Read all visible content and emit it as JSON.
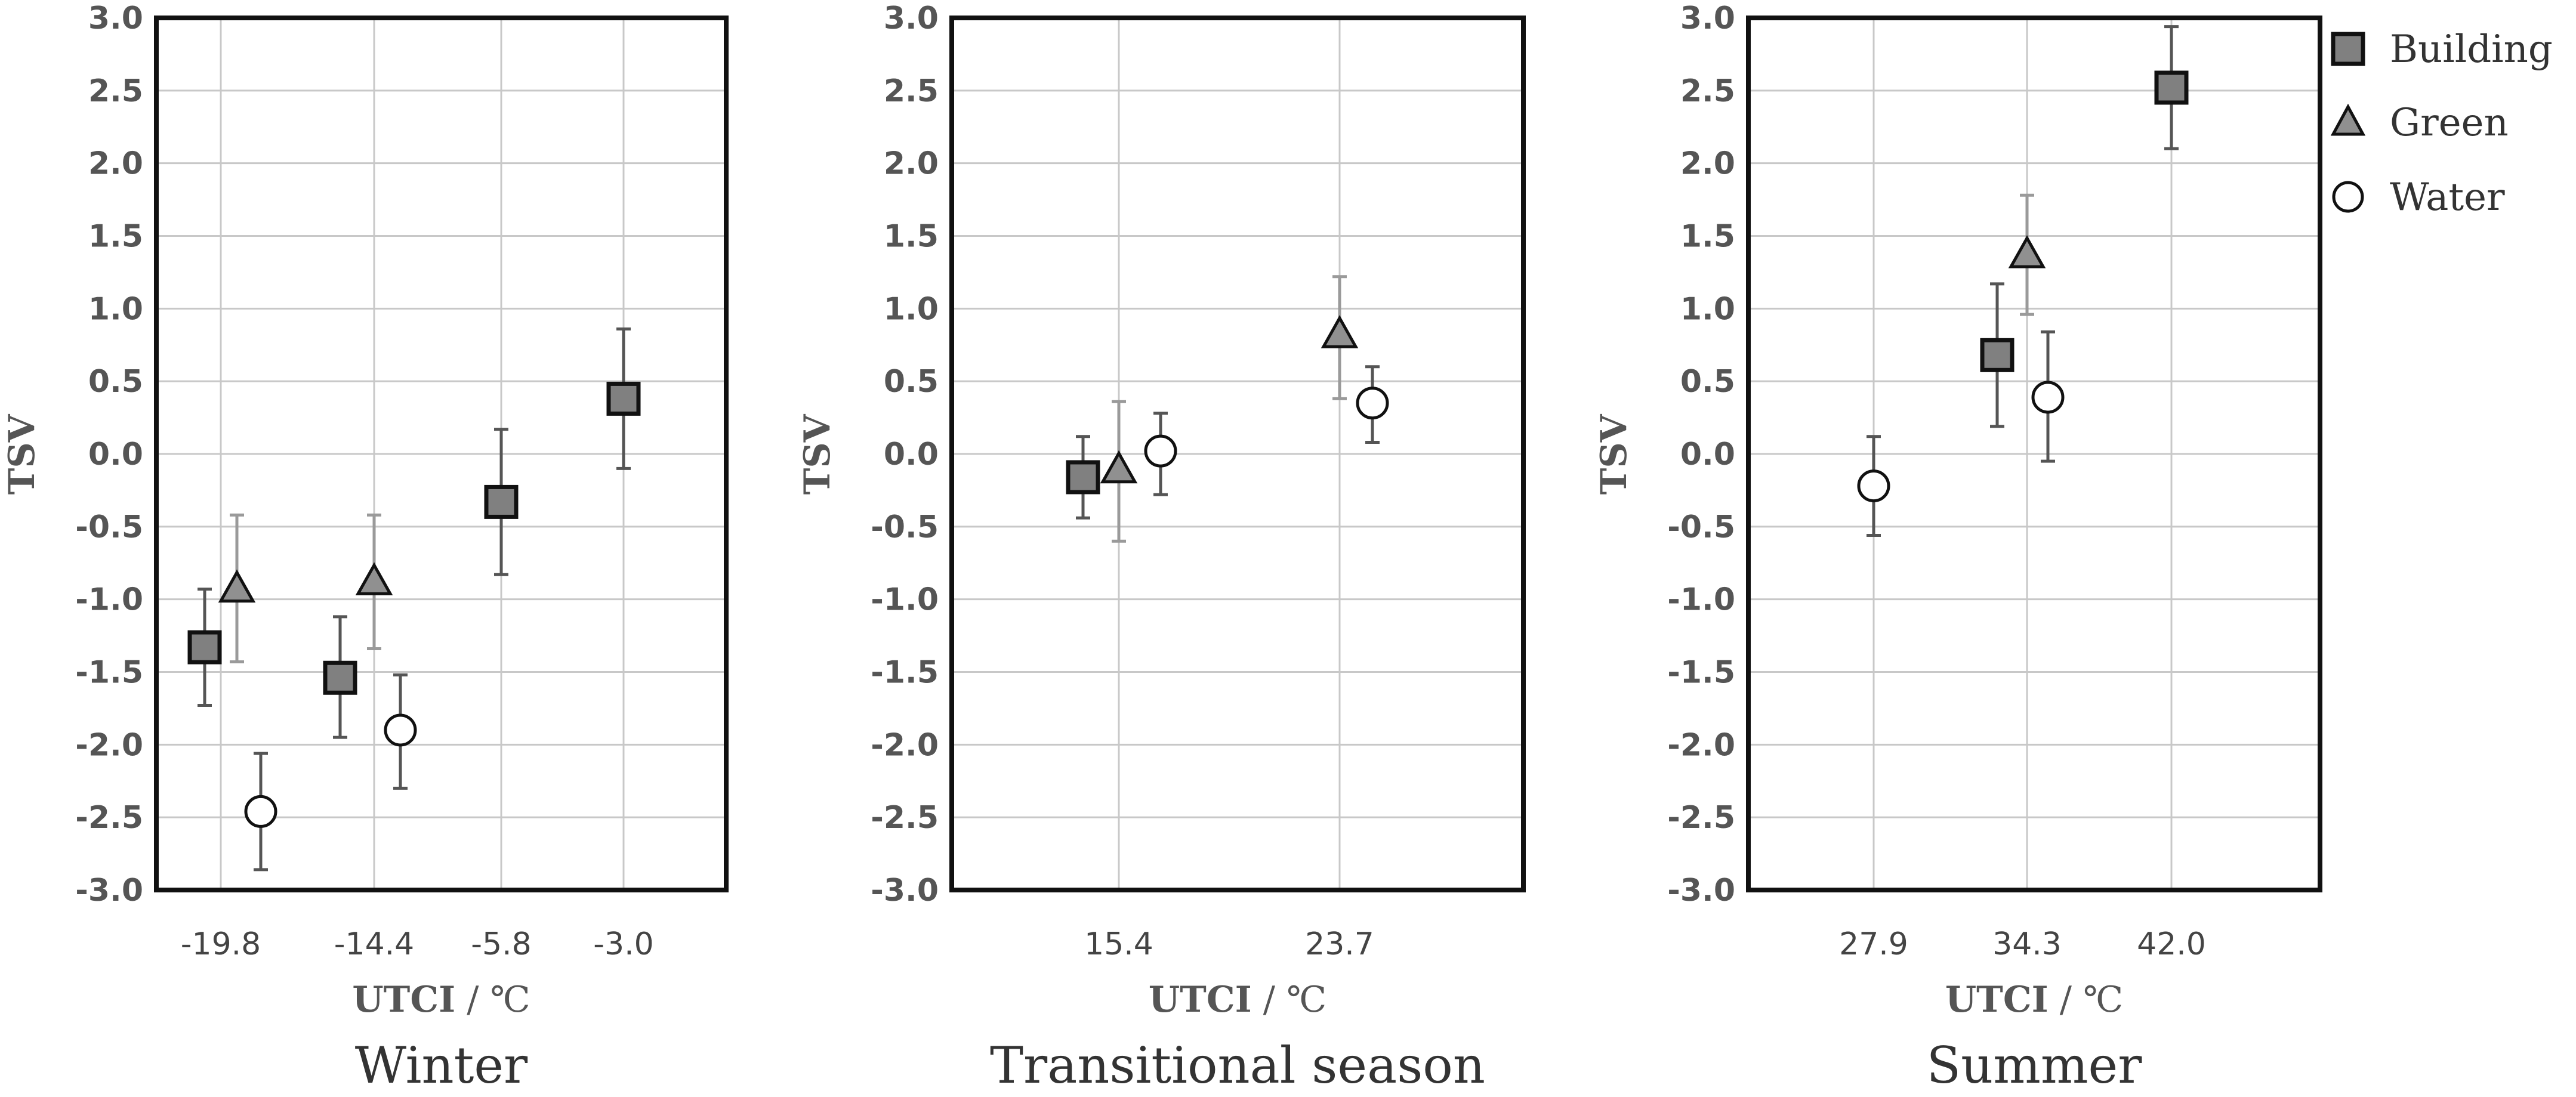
{
  "chart_data": [
    {
      "type": "scatter",
      "title": "",
      "caption": "Winter",
      "xlabel": "UTCI",
      "xlabel_unit": " / ℃",
      "ylabel": "TSV",
      "ylim": [
        -3.0,
        3.0
      ],
      "yticks": [
        "3.0",
        "2.5",
        "2.0",
        "1.5",
        "1.0",
        "0.5",
        "0.0",
        "-0.5",
        "-1.0",
        "-1.5",
        "-2.0",
        "-2.5",
        "-3.0"
      ],
      "x_categories": [
        "-19.8",
        "-14.4",
        "-5.8",
        "-3.0"
      ],
      "grid": true,
      "series": [
        {
          "name": "Building",
          "marker": "square",
          "points": [
            {
              "x": "-19.8",
              "y": -1.33,
              "err_low": -1.73,
              "err_high": -0.93
            },
            {
              "x": "-14.4",
              "y": -1.54,
              "err_low": -1.95,
              "err_high": -1.12
            },
            {
              "x": "-5.8",
              "y": -0.33,
              "err_low": -0.83,
              "err_high": 0.17
            },
            {
              "x": "-3.0",
              "y": 0.38,
              "err_low": -0.1,
              "err_high": 0.86
            }
          ]
        },
        {
          "name": "Green",
          "marker": "triangle",
          "points": [
            {
              "x": "-19.8",
              "y": -0.93,
              "err_low": -1.43,
              "err_high": -0.42
            },
            {
              "x": "-14.4",
              "y": -0.88,
              "err_low": -1.34,
              "err_high": -0.42
            }
          ]
        },
        {
          "name": "Water",
          "marker": "circle",
          "points": [
            {
              "x": "-19.8",
              "y": -2.46,
              "err_low": -2.86,
              "err_high": -2.06
            },
            {
              "x": "-14.4",
              "y": -1.9,
              "err_low": -2.3,
              "err_high": -1.52
            }
          ]
        }
      ]
    },
    {
      "type": "scatter",
      "title": "",
      "caption": "Transitional season",
      "xlabel": "UTCI",
      "xlabel_unit": " / ℃",
      "ylabel": "TSV",
      "ylim": [
        -3.0,
        3.0
      ],
      "yticks": [
        "3.0",
        "2.5",
        "2.0",
        "1.5",
        "1.0",
        "0.5",
        "0.0",
        "-0.5",
        "-1.0",
        "-1.5",
        "-2.0",
        "-2.5",
        "-3.0"
      ],
      "x_categories": [
        "15.4",
        "23.7"
      ],
      "grid": true,
      "series": [
        {
          "name": "Building",
          "marker": "square",
          "points": [
            {
              "x": "15.4",
              "y": -0.16,
              "err_low": -0.44,
              "err_high": 0.12
            }
          ]
        },
        {
          "name": "Green",
          "marker": "triangle",
          "points": [
            {
              "x": "15.4",
              "y": -0.11,
              "err_low": -0.6,
              "err_high": 0.36
            },
            {
              "x": "23.7",
              "y": 0.82,
              "err_low": 0.38,
              "err_high": 1.22
            }
          ]
        },
        {
          "name": "Water",
          "marker": "circle",
          "points": [
            {
              "x": "15.4",
              "y": 0.02,
              "err_low": -0.28,
              "err_high": 0.28
            },
            {
              "x": "23.7",
              "y": 0.35,
              "err_low": 0.08,
              "err_high": 0.6
            }
          ]
        }
      ]
    },
    {
      "type": "scatter",
      "title": "",
      "caption": "Summer",
      "xlabel": "UTCI",
      "xlabel_unit": " / ℃",
      "ylabel": "TSV",
      "ylim": [
        -3.0,
        3.0
      ],
      "yticks": [
        "3.0",
        "2.5",
        "2.0",
        "1.5",
        "1.0",
        "0.5",
        "0.0",
        "-0.5",
        "-1.0",
        "-1.5",
        "-2.0",
        "-2.5",
        "-3.0"
      ],
      "x_categories": [
        "27.9",
        "34.3",
        "42.0"
      ],
      "grid": true,
      "series": [
        {
          "name": "Building",
          "marker": "square",
          "points": [
            {
              "x": "34.3",
              "y": 0.68,
              "err_low": 0.19,
              "err_high": 1.17
            },
            {
              "x": "42.0",
              "y": 2.52,
              "err_low": 2.1,
              "err_high": 2.94
            }
          ]
        },
        {
          "name": "Green",
          "marker": "triangle",
          "points": [
            {
              "x": "34.3",
              "y": 1.37,
              "err_low": 0.96,
              "err_high": 1.78
            }
          ]
        },
        {
          "name": "Water",
          "marker": "circle",
          "points": [
            {
              "x": "27.9",
              "y": -0.22,
              "err_low": -0.56,
              "err_high": 0.12
            },
            {
              "x": "34.3",
              "y": 0.39,
              "err_low": -0.05,
              "err_high": 0.84
            }
          ]
        }
      ]
    }
  ],
  "legend": {
    "position": "top-right",
    "items": [
      {
        "label": "Building",
        "marker": "square"
      },
      {
        "label": "Green",
        "marker": "triangle"
      },
      {
        "label": "Water",
        "marker": "circle"
      }
    ]
  },
  "colors": {
    "building_fill": "#808080",
    "green_fill": "#909090",
    "water_fill": "#ffffff",
    "marker_stroke": "#111111",
    "error_bar": "#555555",
    "grid": "#c8c8c8",
    "frame": "#111111",
    "tick_text": "#555555"
  }
}
